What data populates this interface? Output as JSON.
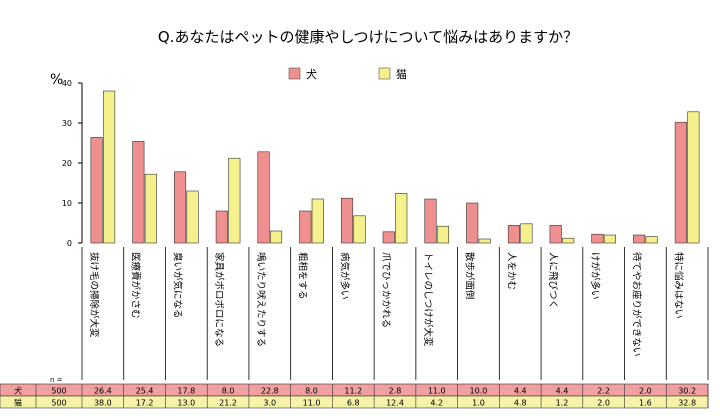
{
  "chart_data": {
    "type": "bar",
    "title": "Q.あなたはペットの健康やしつけについて悩みはありますか？",
    "ylabel": "%",
    "ylim": [
      0,
      40
    ],
    "yticks": [
      0,
      10,
      20,
      30,
      40
    ],
    "grid": false,
    "legend_position": "top-center",
    "categories": [
      "抜け毛の掃除が大変",
      "医療費がかさむ",
      "臭いが気になる",
      "家具がボロボロになる",
      "鳴いたり吠えたりする",
      "粗相をする",
      "病気が多い",
      "爪でひっかかれる",
      "トイレのしつけが大変",
      "散歩が面倒",
      "人をかむ",
      "人に飛びつく",
      "けがが多い",
      "待てやお座りができない",
      "特に悩みはない"
    ],
    "n_label": "n =",
    "series": [
      {
        "name": "犬",
        "n": "500",
        "color": "#ef8f8f",
        "row_color": "#f0a0a0",
        "values": [
          26.4,
          25.4,
          17.8,
          8.0,
          22.8,
          8.0,
          11.2,
          2.8,
          11.0,
          10.0,
          4.4,
          4.4,
          2.2,
          2.0,
          30.2
        ],
        "labels": [
          "26.4",
          "25.4",
          "17.8",
          "8.0",
          "22.8",
          "8.0",
          "11.2",
          "2.8",
          "11.0",
          "10.0",
          "4.4",
          "4.4",
          "2.2",
          "2.0",
          "30.2"
        ]
      },
      {
        "name": "猫",
        "n": "500",
        "color": "#f4f08c",
        "row_color": "#f6f2a8",
        "values": [
          38.0,
          17.2,
          13.0,
          21.2,
          3.0,
          11.0,
          6.8,
          12.4,
          4.2,
          1.0,
          4.8,
          1.2,
          2.0,
          1.6,
          32.8
        ],
        "labels": [
          "38.0",
          "17.2",
          "13.0",
          "21.2",
          "3.0",
          "11.0",
          "6.8",
          "12.4",
          "4.2",
          "1.0",
          "4.8",
          "1.2",
          "2.0",
          "1.6",
          "32.8"
        ]
      }
    ]
  }
}
